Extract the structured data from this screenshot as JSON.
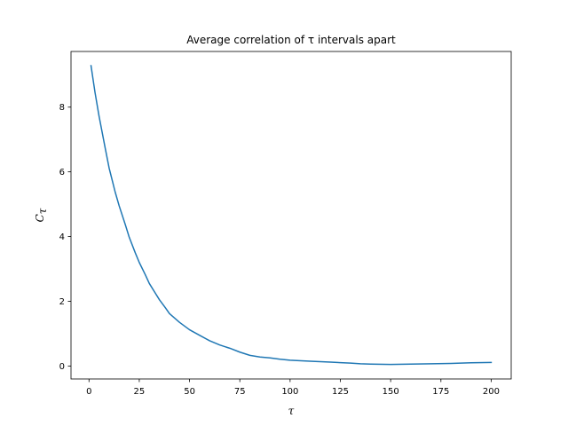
{
  "chart_data": {
    "type": "line",
    "title": "Average correlation of τ intervals apart",
    "xlabel": "τ",
    "ylabel_main": "C",
    "ylabel_sub": "τ",
    "xlim": [
      -8.95,
      209.95
    ],
    "ylim": [
      -0.4,
      9.72
    ],
    "xticks": [
      0,
      25,
      50,
      75,
      100,
      125,
      150,
      175,
      200
    ],
    "xtick_labels": [
      "0",
      "25",
      "50",
      "75",
      "100",
      "125",
      "150",
      "175",
      "200"
    ],
    "yticks": [
      0,
      2,
      4,
      6,
      8
    ],
    "ytick_labels": [
      "0",
      "2",
      "4",
      "6",
      "8"
    ],
    "grid": false,
    "series": [
      {
        "color": "#1f77b4",
        "x": [
          1,
          3,
          5,
          8,
          10,
          13,
          15,
          18,
          20,
          23,
          25,
          28,
          30,
          33,
          35,
          38,
          40,
          45,
          50,
          55,
          60,
          65,
          70,
          75,
          80,
          85,
          90,
          95,
          100,
          110,
          120,
          130,
          135,
          140,
          150,
          160,
          170,
          180,
          190,
          200
        ],
        "y": [
          9.28,
          8.45,
          7.72,
          6.75,
          6.12,
          5.38,
          4.95,
          4.38,
          3.98,
          3.5,
          3.2,
          2.82,
          2.55,
          2.25,
          2.05,
          1.8,
          1.62,
          1.35,
          1.12,
          0.95,
          0.78,
          0.65,
          0.55,
          0.43,
          0.33,
          0.28,
          0.25,
          0.21,
          0.18,
          0.15,
          0.12,
          0.09,
          0.07,
          0.06,
          0.05,
          0.06,
          0.07,
          0.08,
          0.1,
          0.11
        ]
      }
    ]
  }
}
